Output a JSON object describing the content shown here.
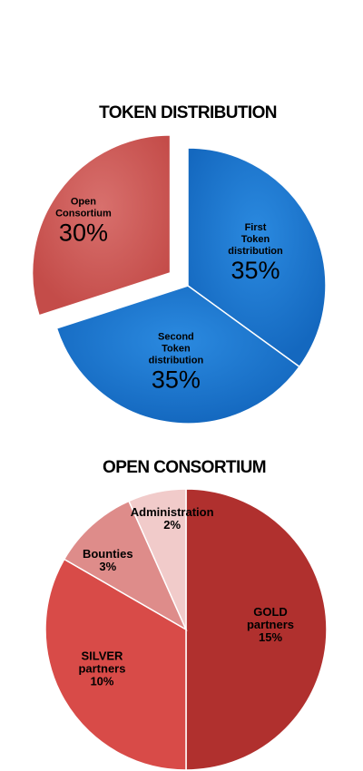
{
  "chart_data": [
    {
      "type": "pie",
      "title": "TOKEN DISTRIBUTION",
      "start_angle_deg": 0,
      "direction": "clockwise",
      "slices": [
        {
          "label_lines": [
            "First",
            "Token",
            "distribution"
          ],
          "value": 35,
          "value_label": "35%",
          "color": "#1F77D0",
          "exploded": false
        },
        {
          "label_lines": [
            "Second",
            "Token",
            "distribution"
          ],
          "value": 35,
          "value_label": "35%",
          "color": "#1F77D0",
          "exploded": false
        },
        {
          "label_lines": [
            "Open",
            "Consortium"
          ],
          "value": 30,
          "value_label": "30%",
          "color": "#CF5B58",
          "exploded": true
        }
      ]
    },
    {
      "type": "pie",
      "title": "OPEN CONSORTIUM",
      "start_angle_deg": 0,
      "direction": "clockwise",
      "slices": [
        {
          "label_lines": [
            "GOLD",
            "partners"
          ],
          "value": 15,
          "value_label": "15%",
          "color": "#B0302E"
        },
        {
          "label_lines": [
            "SILVER",
            "partners"
          ],
          "value": 10,
          "value_label": "10%",
          "color": "#D84B48"
        },
        {
          "label_lines": [
            "Bounties"
          ],
          "value": 3,
          "value_label": "3%",
          "color": "#DE8C8A"
        },
        {
          "label_lines": [
            "Administration"
          ],
          "value": 2,
          "value_label": "2%",
          "color": "#F1CBCA"
        }
      ]
    }
  ]
}
